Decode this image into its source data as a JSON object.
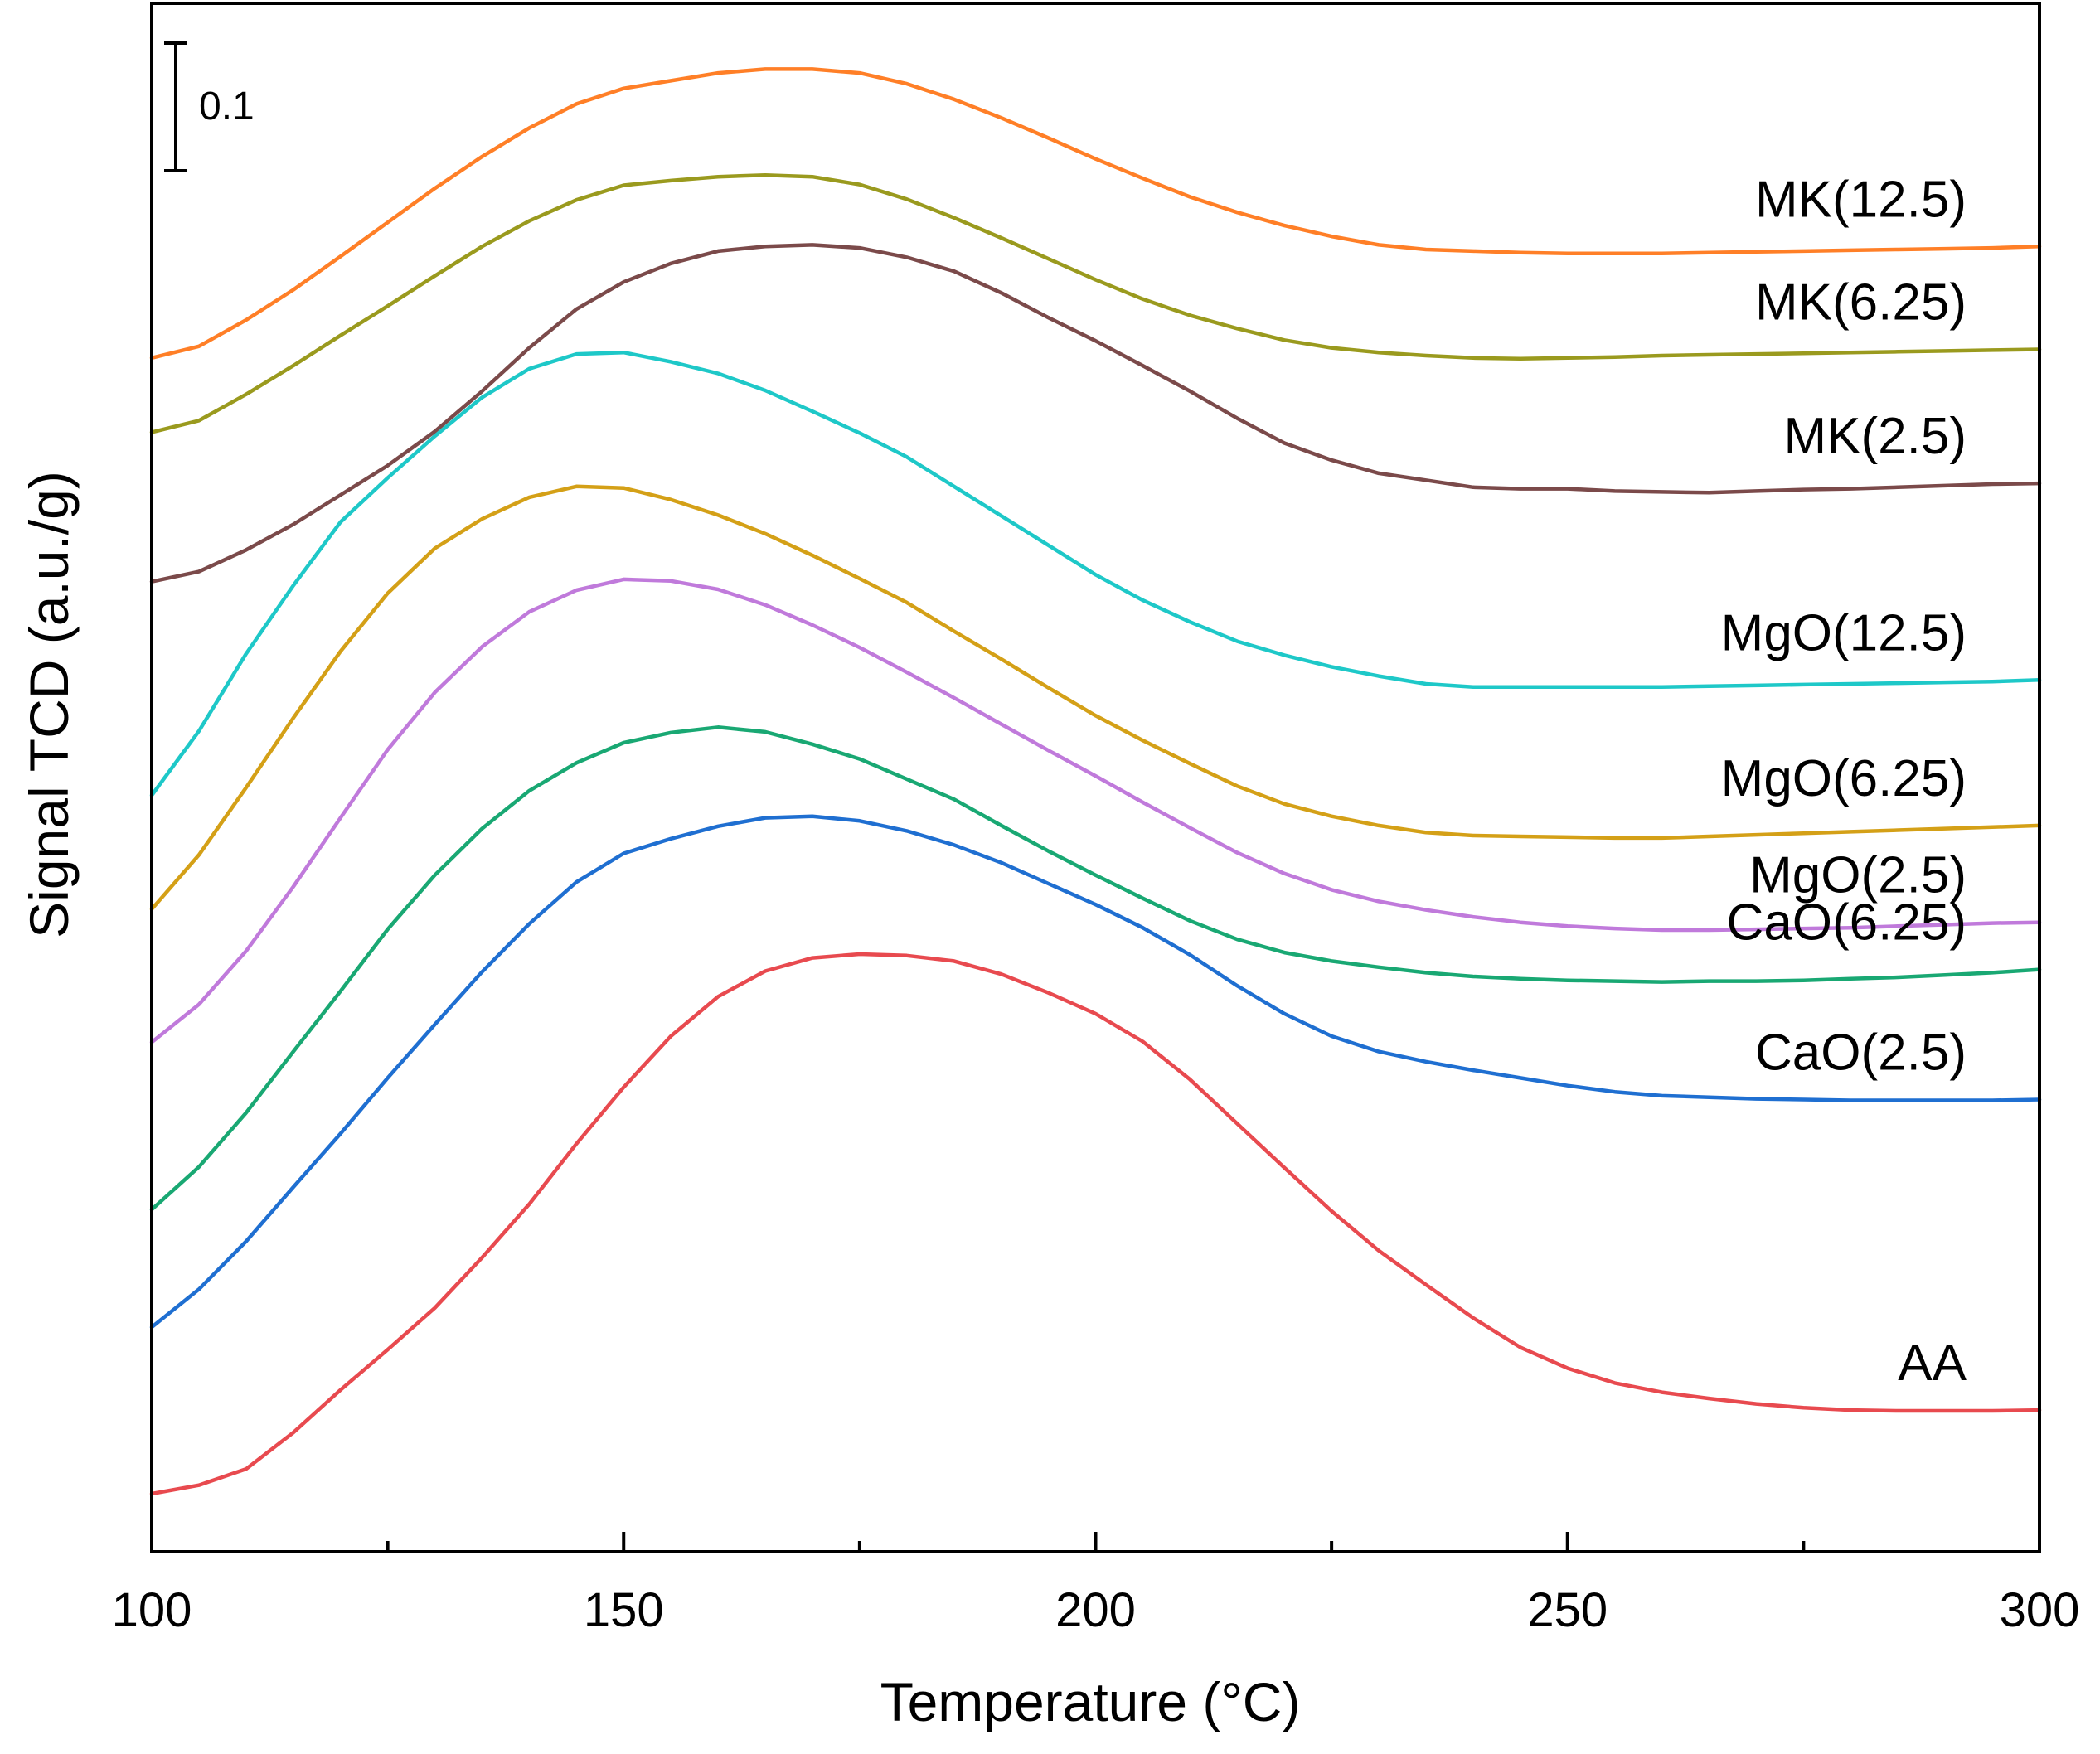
{
  "chart_data": {
    "type": "line",
    "title": "",
    "xlabel": "Temperature (°C)",
    "ylabel": "Signal TCD (a.u./g)",
    "xlim": [
      100,
      300
    ],
    "ylim": [
      0,
      2.0
    ],
    "x_ticks": [
      100,
      150,
      200,
      250,
      300
    ],
    "x_tick_labels": [
      "100",
      "150",
      "200",
      "250",
      "300"
    ],
    "x_minor_ticks": [
      125,
      175,
      225,
      275
    ],
    "y_ticks_shown": false,
    "grid": false,
    "scale_bar": {
      "value": 0.1,
      "label": "0.1"
    },
    "x": [
      100,
      105,
      110,
      115,
      120,
      125,
      130,
      135,
      140,
      145,
      150,
      155,
      160,
      165,
      170,
      175,
      180,
      185,
      190,
      195,
      200,
      205,
      210,
      215,
      220,
      225,
      230,
      235,
      240,
      245,
      250,
      255,
      260,
      265,
      270,
      275,
      280,
      285,
      290,
      295,
      300
    ],
    "series": [
      {
        "name": "MK(12.5)",
        "color": "#ff7f27",
        "values": [
          1.542,
          1.557,
          1.591,
          1.63,
          1.673,
          1.717,
          1.761,
          1.802,
          1.839,
          1.87,
          1.89,
          1.9,
          1.91,
          1.915,
          1.915,
          1.91,
          1.896,
          1.876,
          1.852,
          1.826,
          1.799,
          1.774,
          1.75,
          1.73,
          1.713,
          1.699,
          1.688,
          1.682,
          1.68,
          1.678,
          1.677,
          1.677,
          1.677,
          1.678,
          1.679,
          1.68,
          1.681,
          1.682,
          1.683,
          1.684,
          1.686
        ]
      },
      {
        "name": "MK(6.25)",
        "color": "#9a9a1e",
        "values": [
          1.446,
          1.461,
          1.495,
          1.532,
          1.571,
          1.609,
          1.648,
          1.686,
          1.719,
          1.746,
          1.765,
          1.771,
          1.776,
          1.778,
          1.776,
          1.766,
          1.747,
          1.723,
          1.697,
          1.67,
          1.643,
          1.618,
          1.597,
          1.58,
          1.565,
          1.555,
          1.549,
          1.545,
          1.542,
          1.541,
          1.542,
          1.543,
          1.545,
          1.546,
          1.547,
          1.548,
          1.549,
          1.55,
          1.551,
          1.552,
          1.553
        ]
      },
      {
        "name": "MK(2.5)",
        "color": "#7b4a4a",
        "values": [
          1.253,
          1.266,
          1.294,
          1.327,
          1.365,
          1.403,
          1.447,
          1.499,
          1.555,
          1.605,
          1.64,
          1.664,
          1.68,
          1.686,
          1.688,
          1.684,
          1.672,
          1.654,
          1.626,
          1.594,
          1.564,
          1.532,
          1.499,
          1.464,
          1.432,
          1.41,
          1.393,
          1.384,
          1.375,
          1.373,
          1.373,
          1.37,
          1.369,
          1.368,
          1.37,
          1.372,
          1.373,
          1.375,
          1.377,
          1.379,
          1.38
        ]
      },
      {
        "name": "MgO(12.5)",
        "color": "#1ec8c8",
        "values": [
          0.977,
          1.06,
          1.16,
          1.248,
          1.33,
          1.387,
          1.441,
          1.491,
          1.528,
          1.547,
          1.549,
          1.537,
          1.522,
          1.5,
          1.473,
          1.445,
          1.414,
          1.376,
          1.338,
          1.3,
          1.262,
          1.229,
          1.201,
          1.176,
          1.158,
          1.143,
          1.131,
          1.121,
          1.117,
          1.117,
          1.117,
          1.117,
          1.117,
          1.118,
          1.119,
          1.12,
          1.121,
          1.122,
          1.123,
          1.124,
          1.126
        ]
      },
      {
        "name": "MgO(6.25)",
        "color": "#d4a017",
        "values": [
          0.83,
          0.9,
          0.987,
          1.077,
          1.163,
          1.238,
          1.296,
          1.334,
          1.362,
          1.376,
          1.374,
          1.359,
          1.339,
          1.315,
          1.287,
          1.257,
          1.226,
          1.189,
          1.153,
          1.116,
          1.08,
          1.048,
          1.018,
          0.989,
          0.966,
          0.95,
          0.938,
          0.929,
          0.925,
          0.924,
          0.923,
          0.922,
          0.922,
          0.924,
          0.926,
          0.928,
          0.93,
          0.932,
          0.934,
          0.936,
          0.938
        ]
      },
      {
        "name": "MgO(2.5)",
        "color": "#c07adb",
        "values": [
          0.658,
          0.707,
          0.776,
          0.859,
          0.948,
          1.036,
          1.11,
          1.169,
          1.214,
          1.242,
          1.256,
          1.254,
          1.243,
          1.223,
          1.197,
          1.168,
          1.136,
          1.103,
          1.069,
          1.035,
          1.002,
          0.968,
          0.935,
          0.903,
          0.876,
          0.855,
          0.84,
          0.829,
          0.82,
          0.813,
          0.808,
          0.805,
          0.803,
          0.803,
          0.804,
          0.805,
          0.806,
          0.808,
          0.81,
          0.812,
          0.813
        ]
      },
      {
        "name": "CaO(6.25)",
        "color": "#19a873",
        "values": [
          0.442,
          0.497,
          0.567,
          0.646,
          0.724,
          0.804,
          0.874,
          0.934,
          0.983,
          1.019,
          1.045,
          1.058,
          1.065,
          1.059,
          1.043,
          1.024,
          0.998,
          0.972,
          0.938,
          0.905,
          0.874,
          0.844,
          0.815,
          0.791,
          0.774,
          0.763,
          0.755,
          0.748,
          0.743,
          0.74,
          0.738,
          0.737,
          0.736,
          0.737,
          0.737,
          0.738,
          0.74,
          0.742,
          0.745,
          0.748,
          0.752
        ]
      },
      {
        "name": "CaO(2.5)",
        "color": "#1f6fd1",
        "values": [
          0.29,
          0.339,
          0.401,
          0.471,
          0.54,
          0.612,
          0.681,
          0.749,
          0.811,
          0.865,
          0.902,
          0.921,
          0.937,
          0.948,
          0.95,
          0.944,
          0.931,
          0.913,
          0.89,
          0.863,
          0.836,
          0.806,
          0.771,
          0.731,
          0.695,
          0.666,
          0.646,
          0.633,
          0.622,
          0.612,
          0.602,
          0.594,
          0.589,
          0.587,
          0.585,
          0.584,
          0.583,
          0.583,
          0.583,
          0.583,
          0.584
        ]
      },
      {
        "name": "AA",
        "color": "#e84a4f",
        "values": [
          0.075,
          0.086,
          0.107,
          0.154,
          0.209,
          0.261,
          0.315,
          0.38,
          0.449,
          0.527,
          0.6,
          0.666,
          0.717,
          0.75,
          0.767,
          0.772,
          0.77,
          0.763,
          0.746,
          0.722,
          0.695,
          0.659,
          0.61,
          0.553,
          0.496,
          0.44,
          0.389,
          0.345,
          0.302,
          0.264,
          0.237,
          0.218,
          0.206,
          0.198,
          0.191,
          0.186,
          0.183,
          0.182,
          0.182,
          0.182,
          0.183
        ]
      }
    ]
  }
}
